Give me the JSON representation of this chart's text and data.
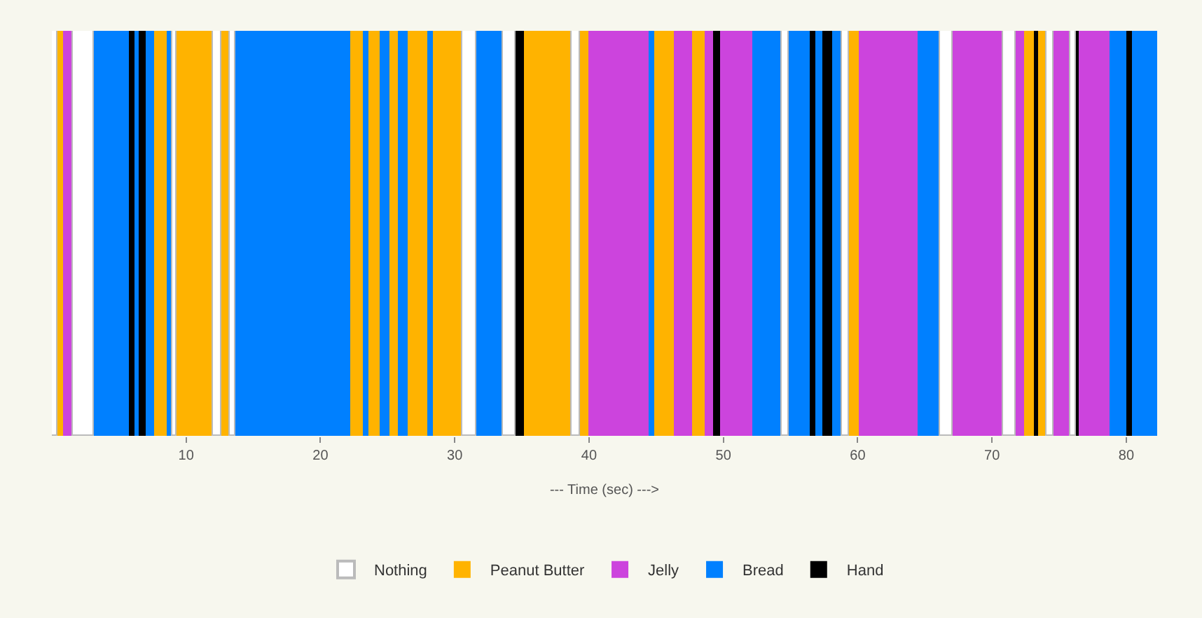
{
  "chart_data": {
    "type": "bar",
    "orientation": "horizontal",
    "stacked": true,
    "categories": [
      null
    ],
    "xlabel": "--- Time (sec) --->",
    "xlim": [
      0,
      82.3
    ],
    "xticks": [
      10,
      20,
      30,
      40,
      50,
      60,
      70,
      80
    ],
    "tick_labels": "x",
    "legend": "bottom",
    "series": [
      {
        "name": "Nothing",
        "color": "#ffffff",
        "values": [
          0.4
        ]
      },
      {
        "name": "Peanut Butter",
        "color": "#ffb300",
        "values": [
          0.4
        ]
      },
      {
        "name": "Jelly",
        "color": "#cc44dd",
        "values": [
          0.8
        ]
      },
      {
        "color": "#ffffff",
        "values": [
          1.5
        ]
      },
      {
        "name": "Bread",
        "color": "#0080ff",
        "values": [
          2.6
        ]
      },
      {
        "name": "Hand",
        "color": "#000000",
        "values": [
          0.5
        ]
      },
      {
        "color": "#0080ff",
        "values": [
          0.3
        ]
      },
      {
        "color": "#000000",
        "values": [
          0.5
        ]
      },
      {
        "color": "#0080ff",
        "values": [
          0.6
        ]
      },
      {
        "color": "#ffb300",
        "values": [
          1.0
        ]
      },
      {
        "color": "#0080ff",
        "values": [
          0.4
        ]
      },
      {
        "color": "#ffffff",
        "values": [
          0.3
        ]
      },
      {
        "color": "#ffb300",
        "values": [
          2.7
        ]
      },
      {
        "color": "#ffffff",
        "values": [
          0.6
        ]
      },
      {
        "color": "#ffb300",
        "values": [
          0.6
        ]
      },
      {
        "color": "#ffffff",
        "values": [
          0.5
        ]
      },
      {
        "color": "#0080ff",
        "values": [
          8.5
        ]
      },
      {
        "color": "#ffb300",
        "values": [
          1.0
        ]
      },
      {
        "color": "#0080ff",
        "values": [
          0.4
        ]
      },
      {
        "color": "#ffb300",
        "values": [
          0.8
        ]
      },
      {
        "color": "#0080ff",
        "values": [
          0.7
        ]
      },
      {
        "color": "#ffb300",
        "values": [
          0.7
        ]
      },
      {
        "color": "#0080ff",
        "values": [
          0.7
        ]
      },
      {
        "color": "#ffb300",
        "values": [
          1.5
        ]
      },
      {
        "color": "#0080ff",
        "values": [
          0.4
        ]
      },
      {
        "color": "#ffb300",
        "values": [
          2.2
        ]
      },
      {
        "color": "#ffffff",
        "values": [
          1.0
        ]
      },
      {
        "color": "#0080ff",
        "values": [
          2.0
        ]
      },
      {
        "color": "#ffffff",
        "values": [
          0.9
        ]
      },
      {
        "color": "#000000",
        "values": [
          0.6
        ]
      },
      {
        "color": "#ffb300",
        "values": [
          3.6
        ]
      },
      {
        "color": "#ffffff",
        "values": [
          0.6
        ]
      },
      {
        "color": "#ffb300",
        "values": [
          0.6
        ]
      },
      {
        "color": "#cc44dd",
        "values": [
          4.5
        ]
      },
      {
        "color": "#0080ff",
        "values": [
          0.5
        ]
      },
      {
        "color": "#ffb300",
        "values": [
          1.4
        ]
      },
      {
        "color": "#cc44dd",
        "values": [
          1.4
        ]
      },
      {
        "color": "#ffb300",
        "values": [
          0.9
        ]
      },
      {
        "color": "#cc44dd",
        "values": [
          0.6
        ]
      },
      {
        "color": "#000000",
        "values": [
          0.6
        ]
      },
      {
        "color": "#cc44dd",
        "values": [
          2.4
        ]
      },
      {
        "color": "#0080ff",
        "values": [
          2.1
        ]
      },
      {
        "color": "#ffffff",
        "values": [
          0.6
        ]
      },
      {
        "color": "#0080ff",
        "values": [
          1.5
        ]
      },
      {
        "color": "#000000",
        "values": [
          0.5
        ]
      },
      {
        "color": "#0080ff",
        "values": [
          0.5
        ]
      },
      {
        "color": "#000000",
        "values": [
          0.7
        ]
      },
      {
        "color": "#0080ff",
        "values": [
          0.7
        ]
      },
      {
        "color": "#ffffff",
        "values": [
          0.5
        ]
      },
      {
        "color": "#ffb300",
        "values": [
          0.8
        ]
      },
      {
        "color": "#cc44dd",
        "values": [
          4.4
        ]
      },
      {
        "color": "#0080ff",
        "values": [
          1.6
        ]
      },
      {
        "color": "#ffffff",
        "values": [
          1.0
        ]
      },
      {
        "color": "#cc44dd",
        "values": [
          3.7
        ]
      },
      {
        "color": "#ffffff",
        "values": [
          1.0
        ]
      },
      {
        "color": "#cc44dd",
        "values": [
          0.6
        ]
      },
      {
        "color": "#ffb300",
        "values": [
          0.7
        ]
      },
      {
        "color": "#000000",
        "values": [
          0.3
        ]
      },
      {
        "color": "#ffb300",
        "values": [
          0.7
        ]
      },
      {
        "color": "#ffffff",
        "values": [
          0.5
        ]
      },
      {
        "color": "#cc44dd",
        "values": [
          1.2
        ]
      },
      {
        "color": "#ffffff",
        "values": [
          0.4
        ]
      },
      {
        "color": "#000000",
        "values": [
          0.3
        ]
      },
      {
        "color": "#cc44dd",
        "values": [
          2.3
        ]
      },
      {
        "color": "#0080ff",
        "values": [
          1.2
        ]
      },
      {
        "color": "#000000",
        "values": [
          0.4
        ]
      },
      {
        "color": "#0080ff",
        "values": [
          1.9
        ]
      }
    ]
  }
}
